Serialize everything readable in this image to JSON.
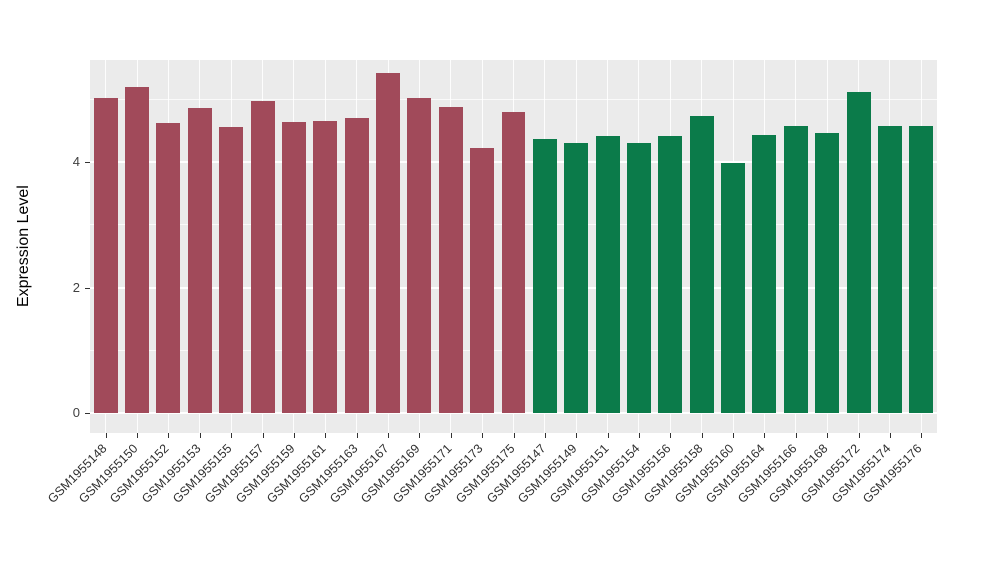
{
  "figure": {
    "background": "#ffffff"
  },
  "chart_data": {
    "type": "bar",
    "title": "",
    "xlabel": "",
    "ylabel": "Expression Level",
    "ylim": [
      0,
      5.6
    ],
    "yticks_major": [
      0,
      2,
      4
    ],
    "yticks_minor": [
      1,
      3,
      5
    ],
    "grid": "on",
    "legend": "none",
    "panel_background": "#ebebeb",
    "gridline_color": "#ffffff",
    "categories": [
      "GSM1955148",
      "GSM1955150",
      "GSM1955152",
      "GSM1955153",
      "GSM1955155",
      "GSM1955157",
      "GSM1955159",
      "GSM1955161",
      "GSM1955163",
      "GSM1955167",
      "GSM1955169",
      "GSM1955171",
      "GSM1955173",
      "GSM1955175",
      "GSM1955147",
      "GSM1955149",
      "GSM1955151",
      "GSM1955154",
      "GSM1955156",
      "GSM1955158",
      "GSM1955160",
      "GSM1955164",
      "GSM1955166",
      "GSM1955168",
      "GSM1955172",
      "GSM1955174",
      "GSM1955176"
    ],
    "values": [
      5.02,
      5.2,
      4.62,
      4.86,
      4.55,
      4.97,
      4.63,
      4.66,
      4.7,
      5.42,
      5.02,
      4.87,
      4.22,
      4.79,
      4.37,
      4.3,
      4.42,
      4.31,
      4.41,
      4.73,
      3.98,
      4.43,
      4.58,
      4.46,
      5.12,
      4.58,
      4.57
    ],
    "groups": [
      0,
      0,
      0,
      0,
      0,
      0,
      0,
      0,
      0,
      0,
      0,
      0,
      0,
      0,
      1,
      1,
      1,
      1,
      1,
      1,
      1,
      1,
      1,
      1,
      1,
      1,
      1
    ],
    "group_colors": [
      "#a14a5a",
      "#0b7b4a"
    ]
  }
}
